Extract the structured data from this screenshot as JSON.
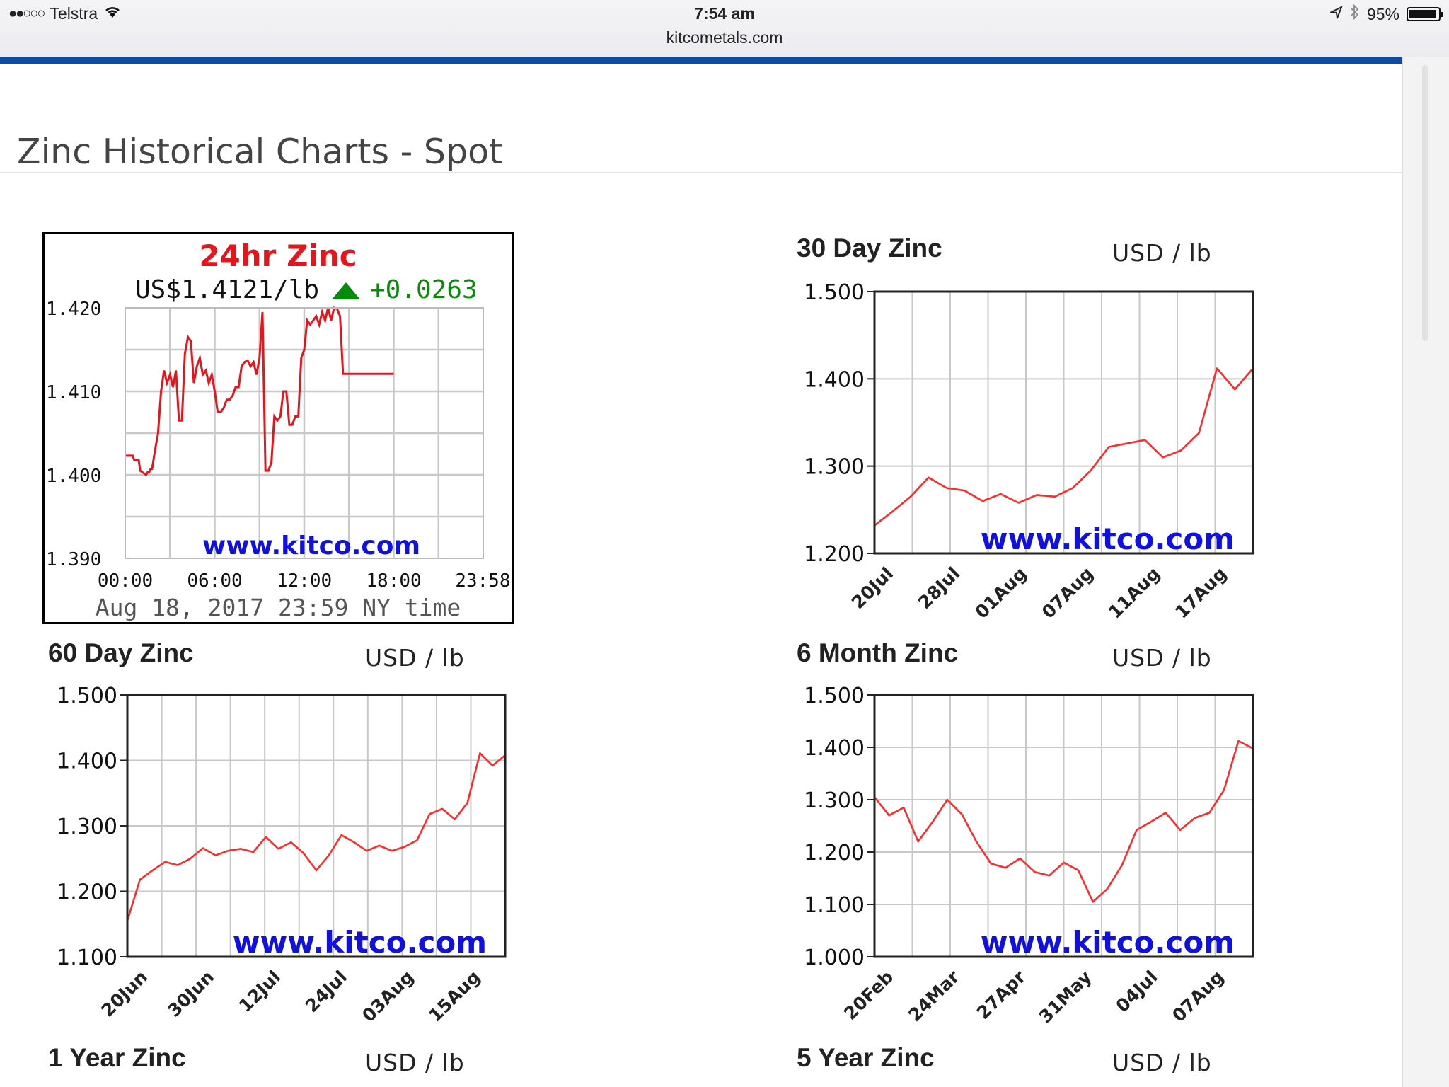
{
  "status_bar": {
    "carrier": "Telstra",
    "signal_icon": "signal-dots-icon",
    "wifi_icon": "wifi-icon",
    "time": "7:54 am",
    "url": "kitcometals.com",
    "location_icon": "location-arrow-icon",
    "bluetooth_icon": "bluetooth-icon",
    "battery_percent": "95%",
    "battery_level": 0.95
  },
  "page": {
    "title": "Zinc Historical Charts - Spot"
  },
  "watermark": "www.kitco.com",
  "chart_24h": {
    "title": "24hr Zinc",
    "price": "US$1.4121/lb",
    "change": "+0.0263",
    "watermark": "www.kitco.com",
    "timestamp": "Aug 18, 2017 23:59 NY time",
    "line_color": "#e8141b",
    "chart_data": {
      "type": "line",
      "title": "24hr Zinc",
      "x_ticks": [
        "00:00",
        "06:00",
        "12:00",
        "18:00",
        "23:58"
      ],
      "y_ticks": [
        "1.420",
        "1.410",
        "1.400",
        "1.390"
      ],
      "ylim": [
        1.39,
        1.42
      ],
      "x_unit": "hours",
      "x": [
        0,
        0.5,
        0.6,
        0.9,
        1.0,
        1.4,
        1.5,
        1.6,
        1.7,
        1.8,
        2.0,
        2.2,
        2.4,
        2.6,
        2.8,
        3.0,
        3.2,
        3.4,
        3.6,
        3.8,
        4.0,
        4.2,
        4.4,
        4.6,
        4.8,
        5.0,
        5.2,
        5.4,
        5.6,
        5.8,
        6.0,
        6.2,
        6.4,
        6.6,
        6.8,
        7.0,
        7.2,
        7.4,
        7.6,
        7.8,
        8.0,
        8.2,
        8.4,
        8.6,
        8.8,
        9.0,
        9.2,
        9.4,
        9.6,
        9.8,
        10.0,
        10.2,
        10.4,
        10.6,
        10.8,
        11.0,
        11.2,
        11.4,
        11.6,
        11.8,
        12.0,
        12.2,
        12.4,
        12.6,
        12.8,
        13.0,
        13.2,
        13.4,
        13.6,
        13.8,
        14.0,
        14.2,
        14.4,
        14.6,
        14.8,
        15.0,
        15.2,
        15.4,
        15.6,
        15.8,
        16.0,
        16.2,
        16.4,
        16.6,
        16.8,
        17.0,
        17.4,
        17.8,
        18.0
      ],
      "y": [
        1.4023,
        1.4023,
        1.4018,
        1.4018,
        1.4005,
        1.4,
        1.4003,
        1.4003,
        1.4007,
        1.4007,
        1.403,
        1.405,
        1.41,
        1.4125,
        1.411,
        1.412,
        1.4105,
        1.4125,
        1.4065,
        1.4065,
        1.4145,
        1.4165,
        1.416,
        1.411,
        1.413,
        1.414,
        1.412,
        1.4125,
        1.411,
        1.412,
        1.41,
        1.4075,
        1.4075,
        1.408,
        1.409,
        1.409,
        1.4095,
        1.4105,
        1.4105,
        1.413,
        1.4135,
        1.4137,
        1.413,
        1.4135,
        1.412,
        1.414,
        1.4195,
        1.4005,
        1.4005,
        1.4015,
        1.407,
        1.4065,
        1.407,
        1.41,
        1.41,
        1.406,
        1.406,
        1.407,
        1.407,
        1.414,
        1.415,
        1.4185,
        1.418,
        1.4185,
        1.419,
        1.418,
        1.4195,
        1.4185,
        1.42,
        1.4185,
        1.42,
        1.4199,
        1.419,
        1.4121,
        1.4121,
        1.4121,
        1.4121,
        1.4121,
        1.4121,
        1.4121,
        1.4121,
        1.4121,
        1.4121,
        1.4121,
        1.4121,
        1.4121,
        1.4121,
        1.4121,
        1.4121
      ],
      "grid": true
    }
  },
  "chart_30d": {
    "title": "30 Day Zinc",
    "unit": "USD / lb",
    "watermark": "www.kitco.com",
    "line_color": "#ff2a2a",
    "chart_data": {
      "type": "line",
      "title": "30 Day Zinc",
      "ylabel": "USD / lb",
      "y_ticks": [
        "1.500",
        "1.400",
        "1.300",
        "1.200"
      ],
      "x_ticks": [
        "20Jul",
        "28Jul",
        "01Aug",
        "07Aug",
        "11Aug",
        "17Aug"
      ],
      "ylim": [
        1.2,
        1.5
      ],
      "x": [
        "20 Jul",
        "21 Jul",
        "24 Jul",
        "25 Jul",
        "26 Jul",
        "27 Jul",
        "28 Jul",
        "31 Jul",
        "01 Aug",
        "02 Aug",
        "03 Aug",
        "04 Aug",
        "07 Aug",
        "08 Aug",
        "09 Aug",
        "10 Aug",
        "11 Aug",
        "14 Aug",
        "15 Aug",
        "16 Aug",
        "17 Aug",
        "18 Aug"
      ],
      "y": [
        1.232,
        1.248,
        1.265,
        1.287,
        1.275,
        1.272,
        1.26,
        1.268,
        1.258,
        1.267,
        1.265,
        1.275,
        1.295,
        1.322,
        1.326,
        1.33,
        1.31,
        1.318,
        1.338,
        1.412,
        1.388,
        1.412
      ],
      "grid": true
    }
  },
  "chart_60d": {
    "title": "60 Day Zinc",
    "unit": "USD / lb",
    "watermark": "www.kitco.com",
    "line_color": "#ff2a2a",
    "chart_data": {
      "type": "line",
      "title": "60 Day Zinc",
      "ylabel": "USD / lb",
      "y_ticks": [
        "1.500",
        "1.400",
        "1.300",
        "1.200",
        "1.100"
      ],
      "x_ticks": [
        "20Jun",
        "30Jun",
        "12Jul",
        "24Jul",
        "03Aug",
        "15Aug"
      ],
      "ylim": [
        1.1,
        1.5
      ],
      "x": [
        "20 Jun",
        "22 Jun",
        "24 Jun",
        "26 Jun",
        "28 Jun",
        "30 Jun",
        "02 Jul",
        "04 Jul",
        "06 Jul",
        "08 Jul",
        "10 Jul",
        "12 Jul",
        "14 Jul",
        "16 Jul",
        "18 Jul",
        "20 Jul",
        "22 Jul",
        "24 Jul",
        "26 Jul",
        "28 Jul",
        "30 Jul",
        "01 Aug",
        "03 Aug",
        "05 Aug",
        "07 Aug",
        "09 Aug",
        "11 Aug",
        "13 Aug",
        "15 Aug",
        "17 Aug",
        "18 Aug"
      ],
      "y": [
        1.155,
        1.218,
        1.232,
        1.245,
        1.24,
        1.25,
        1.266,
        1.255,
        1.262,
        1.265,
        1.26,
        1.283,
        1.265,
        1.275,
        1.258,
        1.232,
        1.255,
        1.286,
        1.275,
        1.262,
        1.27,
        1.262,
        1.268,
        1.278,
        1.318,
        1.326,
        1.31,
        1.335,
        1.411,
        1.392,
        1.408
      ],
      "grid": true
    }
  },
  "chart_6m": {
    "title": "6 Month Zinc",
    "unit": "USD / lb",
    "watermark": "www.kitco.com",
    "line_color": "#ff2a2a",
    "chart_data": {
      "type": "line",
      "title": "6 Month Zinc",
      "ylabel": "USD / lb",
      "y_ticks": [
        "1.500",
        "1.400",
        "1.300",
        "1.200",
        "1.100",
        "1.000"
      ],
      "x_ticks": [
        "20Feb",
        "24Mar",
        "27Apr",
        "31May",
        "04Jul",
        "07Aug"
      ],
      "ylim": [
        1.0,
        1.5
      ],
      "x": [
        "20 Feb",
        "27 Feb",
        "06 Mar",
        "13 Mar",
        "20 Mar",
        "27 Mar",
        "03 Apr",
        "10 Apr",
        "17 Apr",
        "24 Apr",
        "01 May",
        "08 May",
        "15 May",
        "22 May",
        "29 May",
        "05 Jun",
        "12 Jun",
        "19 Jun",
        "26 Jun",
        "03 Jul",
        "10 Jul",
        "17 Jul",
        "24 Jul",
        "31 Jul",
        "07 Aug",
        "14 Aug",
        "18 Aug"
      ],
      "y": [
        1.305,
        1.27,
        1.285,
        1.22,
        1.258,
        1.3,
        1.272,
        1.22,
        1.178,
        1.17,
        1.188,
        1.162,
        1.155,
        1.18,
        1.165,
        1.105,
        1.13,
        1.175,
        1.242,
        1.258,
        1.275,
        1.242,
        1.265,
        1.275,
        1.318,
        1.412,
        1.398
      ],
      "grid": true
    }
  },
  "chart_1y": {
    "title": "1 Year Zinc",
    "unit": "USD / lb"
  },
  "chart_5y": {
    "title": "5 Year Zinc",
    "unit": "USD / lb"
  }
}
